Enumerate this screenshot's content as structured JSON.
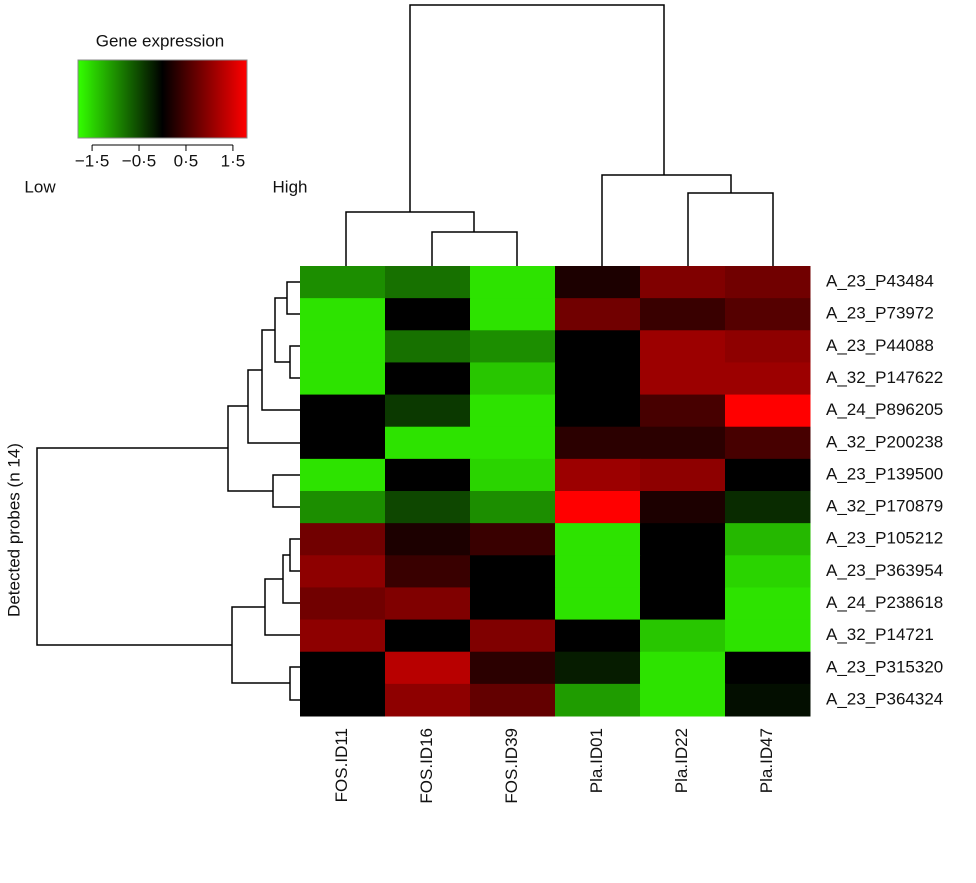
{
  "chart_data": {
    "type": "heatmap",
    "colorbar_title": "Gene expression",
    "low_label": "Low",
    "high_label": "High",
    "ylabel": "Detected probes (n 14)",
    "columns": [
      "FOS.ID11",
      "FOS.ID16",
      "FOS.ID39",
      "Pla.ID01",
      "Pla.ID22",
      "Pla.ID47"
    ],
    "rows": [
      "A_23_P43484",
      "A_23_P73972",
      "A_23_P44088",
      "A_32_P147622",
      "A_24_P896205",
      "A_32_P200238",
      "A_23_P139500",
      "A_32_P170879",
      "A_23_P105212",
      "A_23_P363954",
      "A_24_P238618",
      "A_32_P14721",
      "A_23_P315320",
      "A_23_P364324"
    ],
    "values": [
      [
        -1.0,
        -0.8,
        -1.6,
        0.2,
        0.9,
        0.8
      ],
      [
        -1.6,
        0,
        -1.6,
        0.8,
        0.4,
        0.6
      ],
      [
        -1.6,
        -0.8,
        -1.0,
        0,
        1.1,
        1.0
      ],
      [
        -1.6,
        0,
        -1.4,
        0,
        1.1,
        1.1
      ],
      [
        0,
        -0.4,
        -1.6,
        0,
        0.5,
        1.8
      ],
      [
        0,
        -1.6,
        -1.6,
        0.3,
        0.3,
        0.5
      ],
      [
        -1.6,
        0,
        -1.5,
        1.1,
        1.0,
        0
      ],
      [
        -1.0,
        -0.5,
        -1.0,
        1.8,
        0.2,
        -0.3
      ],
      [
        0.8,
        0.2,
        0.4,
        -1.6,
        0,
        -1.3
      ],
      [
        1.0,
        0.4,
        0,
        -1.6,
        0,
        -1.5
      ],
      [
        0.8,
        0.9,
        0,
        -1.6,
        0,
        -1.6
      ],
      [
        1.0,
        0,
        0.9,
        0,
        -1.4,
        -1.6
      ],
      [
        0,
        1.3,
        0.3,
        -0.2,
        -1.6,
        0
      ],
      [
        0,
        1.0,
        0.7,
        -1.1,
        -1.6,
        -0.1
      ]
    ],
    "zlim": [
      -1.8,
      1.8
    ],
    "zticks": [
      {
        "value": -1.5,
        "label": "−1·5"
      },
      {
        "value": -0.5,
        "label": "−0·5"
      },
      {
        "value": 0.5,
        "label": "0·5"
      },
      {
        "value": 1.5,
        "label": "1·5"
      }
    ],
    "colors": {
      "low": "#33ff00",
      "mid": "#000000",
      "high": "#ff0000"
    }
  }
}
